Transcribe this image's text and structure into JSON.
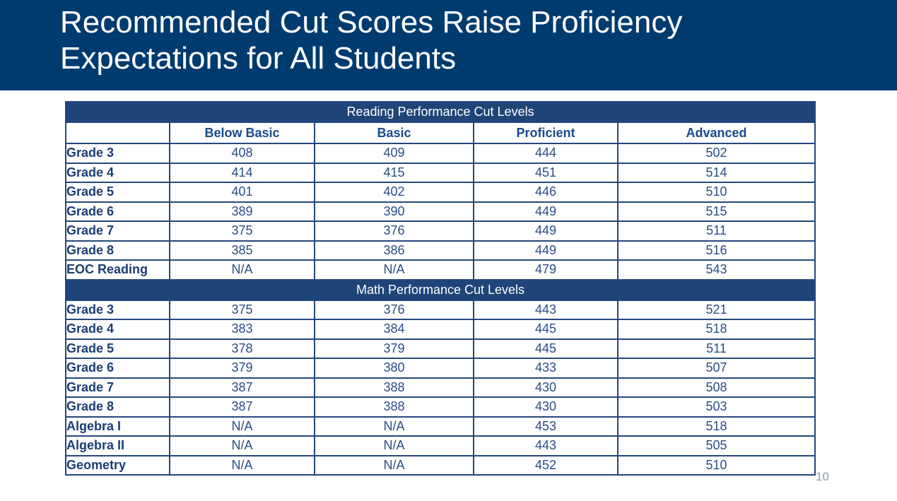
{
  "slide": {
    "title_line1": "Recommended Cut Scores Raise Proficiency",
    "title_line2": "Expectations for All Students",
    "page_number": "10"
  },
  "colors": {
    "header_band": "#003b70",
    "table_section_band": "#1f4478",
    "table_border": "#24487e",
    "column_header_text": "#164b8c",
    "row_label_text": "#1b3e73",
    "value_text": "#2a4d85",
    "page_number_text": "#8e9bb3",
    "title_text": "#ffffff"
  },
  "table": {
    "column_headers": [
      "",
      "Below Basic",
      "Basic",
      "Proficient",
      "Advanced"
    ],
    "sections": [
      {
        "header": "Reading Performance Cut Levels",
        "show_column_headers": true,
        "rows": [
          {
            "label": "Grade 3",
            "values": [
              "408",
              "409",
              "444",
              "502"
            ]
          },
          {
            "label": "Grade 4",
            "values": [
              "414",
              "415",
              "451",
              "514"
            ]
          },
          {
            "label": "Grade 5",
            "values": [
              "401",
              "402",
              "446",
              "510"
            ]
          },
          {
            "label": "Grade 6",
            "values": [
              "389",
              "390",
              "449",
              "515"
            ]
          },
          {
            "label": "Grade 7",
            "values": [
              "375",
              "376",
              "449",
              "511"
            ]
          },
          {
            "label": "Grade 8",
            "values": [
              "385",
              "386",
              "449",
              "516"
            ]
          },
          {
            "label": "EOC Reading",
            "values": [
              "N/A",
              "N/A",
              "479",
              "543"
            ]
          }
        ]
      },
      {
        "header": "Math Performance Cut Levels",
        "show_column_headers": false,
        "rows": [
          {
            "label": "Grade 3",
            "values": [
              "375",
              "376",
              "443",
              "521"
            ]
          },
          {
            "label": "Grade 4",
            "values": [
              "383",
              "384",
              "445",
              "518"
            ]
          },
          {
            "label": "Grade 5",
            "values": [
              "378",
              "379",
              "445",
              "511"
            ]
          },
          {
            "label": "Grade 6",
            "values": [
              "379",
              "380",
              "433",
              "507"
            ]
          },
          {
            "label": "Grade 7",
            "values": [
              "387",
              "388",
              "430",
              "508"
            ]
          },
          {
            "label": "Grade 8",
            "values": [
              "387",
              "388",
              "430",
              "503"
            ]
          },
          {
            "label": "Algebra I",
            "values": [
              "N/A",
              "N/A",
              "453",
              "518"
            ]
          },
          {
            "label": "Algebra II",
            "values": [
              "N/A",
              "N/A",
              "443",
              "505"
            ]
          },
          {
            "label": "Geometry",
            "values": [
              "N/A",
              "N/A",
              "452",
              "510"
            ]
          }
        ]
      }
    ]
  }
}
